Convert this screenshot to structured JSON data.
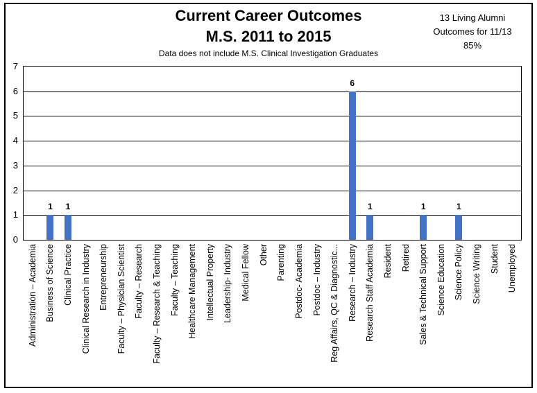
{
  "figure": {
    "title_line1": "Current Career Outcomes",
    "title_line2": "M.S. 2011 to 2015",
    "subtitle": "Data does not include M.S. Clinical Investigation Graduates",
    "annotation": {
      "line1": "13 Living Alumni",
      "line2": "Outcomes for 11/13",
      "line3": "85%"
    }
  },
  "chart_data": {
    "type": "bar",
    "title": "Current Career Outcomes M.S. 2011 to 2015",
    "subtitle": "Data does not include M.S. Clinical Investigation Graduates",
    "annotation": "13 Living Alumni Outcomes for 11/13 85%",
    "categories": [
      "Administration – Academia",
      "Business of Science",
      "Clinical Practice",
      "Clinical Research in Industry",
      "Entrepreneurship",
      "Faculty – Physician Scientist",
      "Faculty – Research",
      "Faculty – Research & Teaching",
      "Faculty – Teaching",
      "Healthcare Management",
      "Intellectual Property",
      "Leadership- Industry",
      "Medical Fellow",
      "Other",
      "Parenting",
      "Postdoc- Academia",
      "Postdoc – Industry",
      "Reg Affairs, QC & Diagnostic...",
      "Research – Industry",
      "Research Staff Academia",
      "Resident",
      "Retired",
      "Sales & Technical Support",
      "Science Education",
      "Science Policy",
      "Science Writing",
      "Student",
      "Unemployed"
    ],
    "values": [
      0,
      1,
      1,
      0,
      0,
      0,
      0,
      0,
      0,
      0,
      0,
      0,
      0,
      0,
      0,
      0,
      0,
      0,
      6,
      1,
      0,
      0,
      1,
      0,
      1,
      0,
      0,
      0
    ],
    "value_labels": [
      "",
      "1",
      "1",
      "",
      "",
      "",
      "",
      "",
      "",
      "",
      "",
      "",
      "",
      "",
      "",
      "",
      "",
      "",
      "6",
      "1",
      "",
      "",
      "1",
      "",
      "1",
      "",
      "",
      ""
    ],
    "xlabel": "",
    "ylabel": "",
    "ylim": [
      0,
      7
    ],
    "yticks": [
      0,
      1,
      2,
      3,
      4,
      5,
      6,
      7
    ],
    "grid": true,
    "legend": "none",
    "bar_color": "#4472C4",
    "axis_color": "#000000"
  }
}
